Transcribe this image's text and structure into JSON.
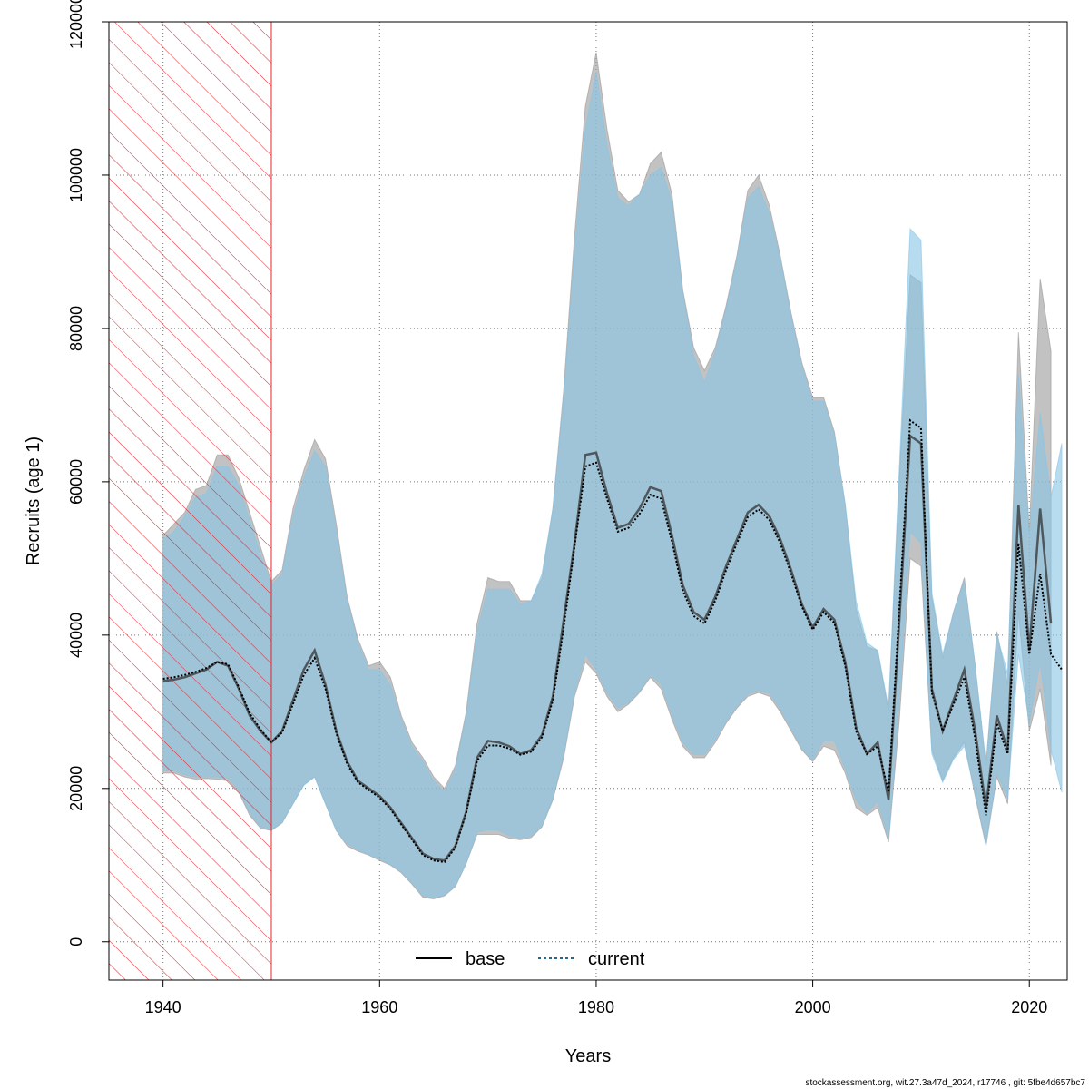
{
  "chart_data": {
    "type": "area",
    "xlabel": "Years",
    "ylabel": "Recruits (age 1)",
    "xlim": [
      1935,
      2023.5
    ],
    "ylim": [
      -5000,
      120000
    ],
    "x_ticks": [
      1940,
      1960,
      1980,
      2000,
      2020
    ],
    "y_ticks": [
      0,
      20000,
      40000,
      60000,
      80000,
      100000,
      120000
    ],
    "x_tick_labels": [
      "1940",
      "1960",
      "1980",
      "2000",
      "2020"
    ],
    "y_tick_labels": [
      "0",
      "20000",
      "40000",
      "60000",
      "80000",
      "100000",
      "120000"
    ],
    "grid": true,
    "legend_position": "bottom-center",
    "hatched_region": {
      "from": 1935,
      "to": 1950,
      "color": "#e8202a"
    },
    "series": [
      {
        "name": "base",
        "color": "#333333",
        "band_color": "#999999",
        "x": [
          1940,
          1941,
          1942,
          1943,
          1944,
          1945,
          1946,
          1947,
          1948,
          1949,
          1950,
          1951,
          1952,
          1953,
          1954,
          1955,
          1956,
          1957,
          1958,
          1959,
          1960,
          1961,
          1962,
          1963,
          1964,
          1965,
          1966,
          1967,
          1968,
          1969,
          1970,
          1971,
          1972,
          1973,
          1974,
          1975,
          1976,
          1977,
          1978,
          1979,
          1980,
          1981,
          1982,
          1983,
          1984,
          1985,
          1986,
          1987,
          1988,
          1989,
          1990,
          1991,
          1992,
          1993,
          1994,
          1995,
          1996,
          1997,
          1998,
          1999,
          2000,
          2001,
          2002,
          2003,
          2004,
          2005,
          2006,
          2007,
          2008,
          2009,
          2010,
          2011,
          2012,
          2013,
          2014,
          2015,
          2016,
          2017,
          2018,
          2019,
          2020,
          2021,
          2022
        ],
        "values": [
          34000,
          34200,
          34500,
          35000,
          35500,
          36500,
          36000,
          33000,
          29500,
          27500,
          26000,
          27500,
          31500,
          35500,
          38000,
          33500,
          27500,
          23500,
          21000,
          20000,
          19000,
          17500,
          15500,
          13500,
          11500,
          10800,
          10600,
          12500,
          17000,
          24000,
          26200,
          26000,
          25500,
          24500,
          25000,
          27000,
          32000,
          42000,
          52000,
          63500,
          63800,
          58500,
          54000,
          54500,
          56500,
          59300,
          58800,
          53000,
          46500,
          43000,
          42000,
          45000,
          49000,
          52500,
          56000,
          57000,
          55500,
          52500,
          48500,
          44000,
          41000,
          43400,
          42000,
          36500,
          28000,
          24500,
          26000,
          18500,
          42000,
          66000,
          65000,
          33000,
          27500,
          31500,
          35500,
          27500,
          17500,
          29500,
          25000,
          57000,
          38000,
          56500,
          41500
        ],
        "lower": [
          22000,
          22000,
          21500,
          21200,
          21300,
          21200,
          21000,
          19500,
          16500,
          14800,
          14500,
          15500,
          18000,
          20500,
          21500,
          18000,
          14500,
          12500,
          11800,
          11300,
          10600,
          10000,
          9000,
          7500,
          5800,
          5600,
          6000,
          7200,
          10200,
          14000,
          14000,
          14000,
          13500,
          13300,
          13600,
          15000,
          18500,
          24000,
          32000,
          36500,
          35000,
          32000,
          30000,
          31000,
          32500,
          34500,
          33000,
          29000,
          25500,
          24000,
          24000,
          26000,
          28500,
          30500,
          32000,
          32500,
          32000,
          30000,
          27500,
          25000,
          23500,
          25500,
          25000,
          22000,
          17500,
          16500,
          17500,
          13000,
          29000,
          50000,
          49000,
          25000,
          21000,
          24000,
          26000,
          19000,
          12500,
          21500,
          18000,
          43000,
          27500,
          33000,
          23000
        ],
        "upper": [
          53000,
          54500,
          56000,
          59000,
          59500,
          63500,
          63500,
          60500,
          56000,
          51500,
          47000,
          48500,
          56500,
          61500,
          65500,
          63000,
          54500,
          45000,
          39500,
          36000,
          36500,
          34500,
          29500,
          26000,
          24000,
          21500,
          20000,
          23000,
          30000,
          41500,
          47500,
          47000,
          47000,
          44500,
          44500,
          47500,
          56500,
          72000,
          92000,
          109000,
          116000,
          106000,
          98000,
          96500,
          97500,
          101500,
          103000,
          97500,
          85000,
          77500,
          74500,
          77500,
          83000,
          89500,
          98000,
          100000,
          96000,
          89500,
          82000,
          75500,
          71000,
          71000,
          66500,
          57000,
          43500,
          38500,
          38000,
          30000,
          60500,
          87000,
          86000,
          45000,
          37000,
          43000,
          47500,
          36000,
          23000,
          40500,
          33500,
          79500,
          53500,
          86500,
          77000
        ]
      },
      {
        "name": "current",
        "color": "#1a6b99",
        "band_color": "#87c5e6",
        "x": [
          1940,
          1941,
          1942,
          1943,
          1944,
          1945,
          1946,
          1947,
          1948,
          1949,
          1950,
          1951,
          1952,
          1953,
          1954,
          1955,
          1956,
          1957,
          1958,
          1959,
          1960,
          1961,
          1962,
          1963,
          1964,
          1965,
          1966,
          1967,
          1968,
          1969,
          1970,
          1971,
          1972,
          1973,
          1974,
          1975,
          1976,
          1977,
          1978,
          1979,
          1980,
          1981,
          1982,
          1983,
          1984,
          1985,
          1986,
          1987,
          1988,
          1989,
          1990,
          1991,
          1992,
          1993,
          1994,
          1995,
          1996,
          1997,
          1998,
          1999,
          2000,
          2001,
          2002,
          2003,
          2004,
          2005,
          2006,
          2007,
          2008,
          2009,
          2010,
          2011,
          2012,
          2013,
          2014,
          2015,
          2016,
          2017,
          2018,
          2019,
          2020,
          2021,
          2022,
          2023
        ],
        "values": [
          34300,
          34500,
          34800,
          35200,
          35700,
          36500,
          36200,
          33200,
          29800,
          27700,
          26000,
          27300,
          31000,
          34800,
          37000,
          33000,
          27200,
          23200,
          20800,
          19800,
          18800,
          17300,
          15300,
          13300,
          11300,
          10600,
          10400,
          12300,
          16800,
          23600,
          25600,
          25600,
          25200,
          24400,
          24800,
          26700,
          31500,
          41000,
          51500,
          62000,
          62500,
          57800,
          53500,
          54000,
          55800,
          58300,
          57800,
          52200,
          45800,
          42500,
          41500,
          44500,
          48500,
          52000,
          55400,
          56400,
          55000,
          52000,
          48000,
          43700,
          40700,
          43000,
          41600,
          36000,
          27500,
          24500,
          25500,
          19500,
          43500,
          68000,
          67000,
          32500,
          27500,
          31000,
          34500,
          26500,
          16500,
          28500,
          24500,
          52000,
          37500,
          48000,
          37500,
          35500
        ],
        "lower": [
          22300,
          22300,
          21800,
          21500,
          21500,
          21500,
          21300,
          19800,
          16800,
          15000,
          14600,
          15600,
          18000,
          20400,
          21500,
          18000,
          14500,
          12800,
          12000,
          11400,
          10800,
          10100,
          9100,
          7700,
          6000,
          5700,
          6100,
          7300,
          10300,
          14300,
          14600,
          14500,
          13800,
          13500,
          13800,
          15200,
          18700,
          24500,
          32500,
          37500,
          35500,
          32500,
          30500,
          31200,
          32700,
          34800,
          33600,
          29500,
          26000,
          24400,
          24400,
          26400,
          28800,
          30700,
          32300,
          32800,
          32400,
          30400,
          27800,
          25200,
          23700,
          26200,
          26200,
          22500,
          18500,
          16800,
          18300,
          13500,
          31500,
          53500,
          52000,
          24500,
          20800,
          23800,
          25500,
          19500,
          12800,
          22000,
          18800,
          37500,
          28500,
          36500,
          25000,
          19500
        ],
        "upper": [
          52500,
          53500,
          55500,
          58000,
          58500,
          62000,
          62000,
          59500,
          55000,
          50500,
          46500,
          48000,
          55500,
          60500,
          64000,
          62000,
          53500,
          44500,
          39000,
          35500,
          35500,
          33500,
          29000,
          25500,
          23500,
          21000,
          19500,
          22500,
          29500,
          40500,
          46000,
          46000,
          46000,
          44000,
          44500,
          48000,
          56500,
          71000,
          90000,
          106000,
          113500,
          104000,
          97000,
          96000,
          97500,
          100000,
          101000,
          96500,
          84500,
          76500,
          73000,
          77000,
          82500,
          89000,
          97000,
          98500,
          95000,
          89000,
          81500,
          75000,
          70500,
          70500,
          66000,
          57000,
          44500,
          39000,
          38000,
          30500,
          62000,
          93000,
          91500,
          45500,
          37500,
          43000,
          47000,
          36000,
          23000,
          40000,
          35000,
          74000,
          53000,
          69000,
          58000,
          65000
        ]
      }
    ],
    "legend": [
      {
        "name": "base",
        "color": "#000000",
        "line": "solid"
      },
      {
        "name": "current",
        "color": "#1a6b99",
        "line": "dotted"
      }
    ]
  },
  "footer_text": "stockassessment.org, wit.27.3a47d_2024, r17746 , git: 5fbe4d657bc7"
}
